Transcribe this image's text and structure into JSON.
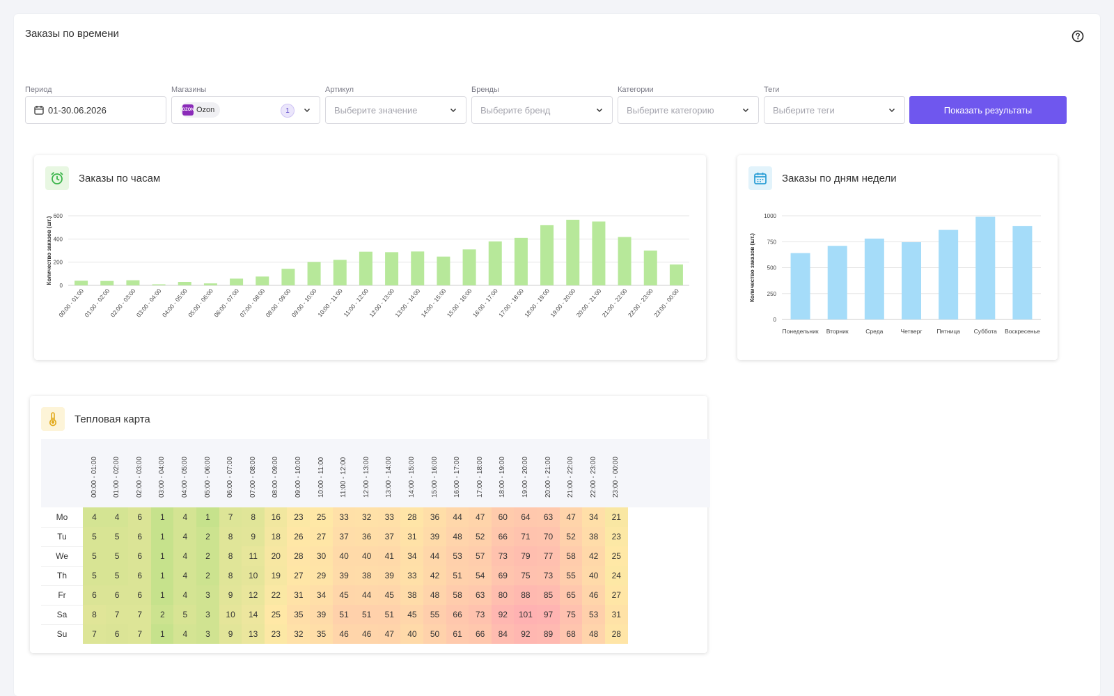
{
  "page": {
    "title": "Заказы по времени"
  },
  "filters": {
    "period": {
      "label": "Период",
      "value": "01-30.06.2026"
    },
    "stores": {
      "label": "Магазины",
      "tag": "Ozon",
      "logo_text": "OZON",
      "count": "1"
    },
    "sku": {
      "label": "Артикул",
      "placeholder": "Выберите значение"
    },
    "brands": {
      "label": "Бренды",
      "placeholder": "Выберите бренд"
    },
    "categories": {
      "label": "Категории",
      "placeholder": "Выберите категорию"
    },
    "tags": {
      "label": "Теги",
      "placeholder": "Выберите теги"
    },
    "submit_label": "Показать результаты"
  },
  "colors": {
    "accent": "#6f57ee",
    "hourly_bar": "#b7e89a",
    "weekday_bar": "#a5dcf9"
  },
  "hourly_card": {
    "title": "Заказы по часам",
    "icon": "alarm-clock-icon"
  },
  "weekday_card": {
    "title": "Заказы по дням недели",
    "icon": "calendar-icon"
  },
  "heatmap_card": {
    "title": "Тепловая карта",
    "icon": "thermometer-icon"
  },
  "chart_data": [
    {
      "type": "bar",
      "ylabel": "Количество заказов (шт.)",
      "ylim": [
        0,
        600
      ],
      "yticks": [
        0,
        200,
        400,
        600
      ],
      "grid": true,
      "categories": [
        "00:00 - 01:00",
        "01:00 - 02:00",
        "02:00 - 03:00",
        "03:00 - 04:00",
        "04:00 - 05:00",
        "05:00 - 06:00",
        "06:00 - 07:00",
        "07:00 - 08:00",
        "08:00 - 09:00",
        "09:00 - 10:00",
        "10:00 - 11:00",
        "11:00 - 12:00",
        "12:00 - 13:00",
        "13:00 - 14:00",
        "14:00 - 15:00",
        "15:00 - 16:00",
        "16:00 - 17:00",
        "17:00 - 18:00",
        "18:00 - 19:00",
        "19:00 - 20:00",
        "20:00 - 21:00",
        "21:00 - 22:00",
        "22:00 - 23:00",
        "23:00 - 00:00"
      ],
      "values": [
        40,
        38,
        44,
        9,
        30,
        17,
        58,
        76,
        143,
        202,
        220,
        290,
        286,
        292,
        248,
        310,
        379,
        409,
        520,
        565,
        550,
        417,
        300,
        180
      ]
    },
    {
      "type": "bar",
      "ylabel": "Количество заказов (шт.)",
      "ylim": [
        0,
        1000
      ],
      "yticks": [
        0,
        250,
        500,
        750,
        1000
      ],
      "grid": true,
      "categories": [
        "Понедельник",
        "Вторник",
        "Среда",
        "Четверг",
        "Пятница",
        "Суббота",
        "Воскресенье"
      ],
      "values": [
        640,
        710,
        780,
        745,
        865,
        990,
        900
      ]
    },
    {
      "type": "heatmap",
      "columns": [
        "00:00 - 01:00",
        "01:00 - 02:00",
        "02:00 - 03:00",
        "03:00 - 04:00",
        "04:00 - 05:00",
        "05:00 - 06:00",
        "06:00 - 07:00",
        "07:00 - 08:00",
        "08:00 - 09:00",
        "09:00 - 10:00",
        "10:00 - 11:00",
        "11:00 - 12:00",
        "12:00 - 13:00",
        "13:00 - 14:00",
        "14:00 - 15:00",
        "15:00 - 16:00",
        "16:00 - 17:00",
        "17:00 - 18:00",
        "18:00 - 19:00",
        "19:00 - 20:00",
        "20:00 - 21:00",
        "21:00 - 22:00",
        "22:00 - 23:00",
        "23:00 - 00:00"
      ],
      "rows": [
        "Mo",
        "Tu",
        "We",
        "Th",
        "Fr",
        "Sa",
        "Su"
      ],
      "values": [
        [
          4,
          4,
          6,
          1,
          4,
          1,
          7,
          8,
          16,
          23,
          25,
          33,
          32,
          33,
          28,
          36,
          44,
          47,
          60,
          64,
          63,
          47,
          34,
          21
        ],
        [
          5,
          5,
          6,
          1,
          4,
          2,
          8,
          9,
          18,
          26,
          27,
          37,
          36,
          37,
          31,
          39,
          48,
          52,
          66,
          71,
          70,
          52,
          38,
          23
        ],
        [
          5,
          5,
          6,
          1,
          4,
          2,
          8,
          11,
          20,
          28,
          30,
          40,
          40,
          41,
          34,
          44,
          53,
          57,
          73,
          79,
          77,
          58,
          42,
          25
        ],
        [
          5,
          5,
          6,
          1,
          4,
          2,
          8,
          10,
          19,
          27,
          29,
          39,
          38,
          39,
          33,
          42,
          51,
          54,
          69,
          75,
          73,
          55,
          40,
          24
        ],
        [
          6,
          6,
          6,
          1,
          4,
          3,
          9,
          12,
          22,
          31,
          34,
          45,
          44,
          45,
          38,
          48,
          58,
          63,
          80,
          88,
          85,
          65,
          46,
          27
        ],
        [
          8,
          7,
          7,
          2,
          5,
          3,
          10,
          14,
          25,
          35,
          39,
          51,
          51,
          51,
          45,
          55,
          66,
          73,
          92,
          101,
          97,
          75,
          53,
          31
        ],
        [
          7,
          6,
          7,
          1,
          4,
          3,
          9,
          13,
          23,
          32,
          35,
          46,
          46,
          47,
          40,
          50,
          61,
          66,
          84,
          92,
          89,
          68,
          48,
          28
        ]
      ]
    }
  ]
}
